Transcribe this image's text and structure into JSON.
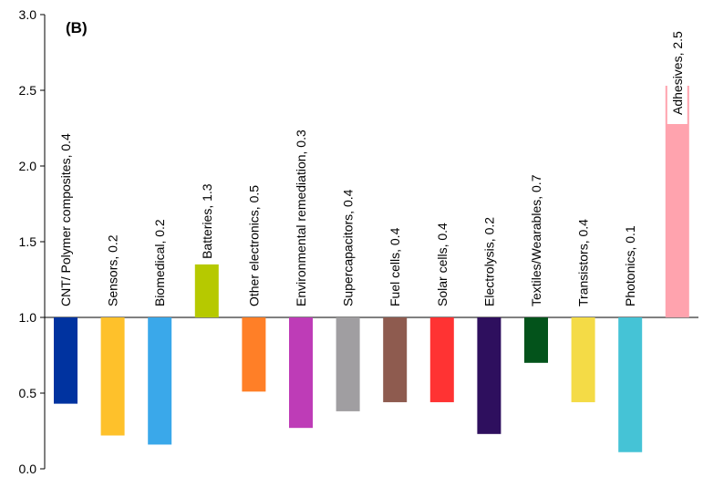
{
  "chart_data": {
    "type": "bar",
    "panel_label": "(B)",
    "baseline": 1.0,
    "ylim": [
      0,
      3.0
    ],
    "yticks": [
      "0.0",
      "0.5",
      "1.0",
      "1.5",
      "2.0",
      "2.5",
      "3.0"
    ],
    "ytick_values": [
      0,
      0.5,
      1.0,
      1.5,
      2.0,
      2.5,
      3.0
    ],
    "xlabel": "",
    "ylabel": "",
    "categories": [
      "CNT/ Polymer composites, 0.4",
      "Sensors, 0.2",
      "Biomedical, 0.2",
      "Batteries, 1.3",
      "Other electronics, 0.5",
      "Environmental remediation, 0.3",
      "Supercapacitors, 0.4",
      "Fuel cells, 0.4",
      "Solar cells, 0.4",
      "Electrolysis, 0.2",
      "Textiles/Wearables, 0.7",
      "Transistors, 0.4",
      "Photonics, 0.1",
      "Adhesives, 2.5"
    ],
    "values": [
      0.43,
      0.22,
      0.16,
      1.35,
      0.51,
      0.27,
      0.38,
      0.44,
      0.44,
      0.23,
      0.7,
      0.44,
      0.11,
      2.53
    ],
    "colors": [
      "#0033A0",
      "#FEC12B",
      "#3AA8EA",
      "#B6C900",
      "#FF7F27",
      "#BE3CB7",
      "#A09EA1",
      "#8E5B4F",
      "#FF3333",
      "#2E0F5E",
      "#03531B",
      "#F4DB46",
      "#45C3D6",
      "#FFA3AE"
    ]
  }
}
